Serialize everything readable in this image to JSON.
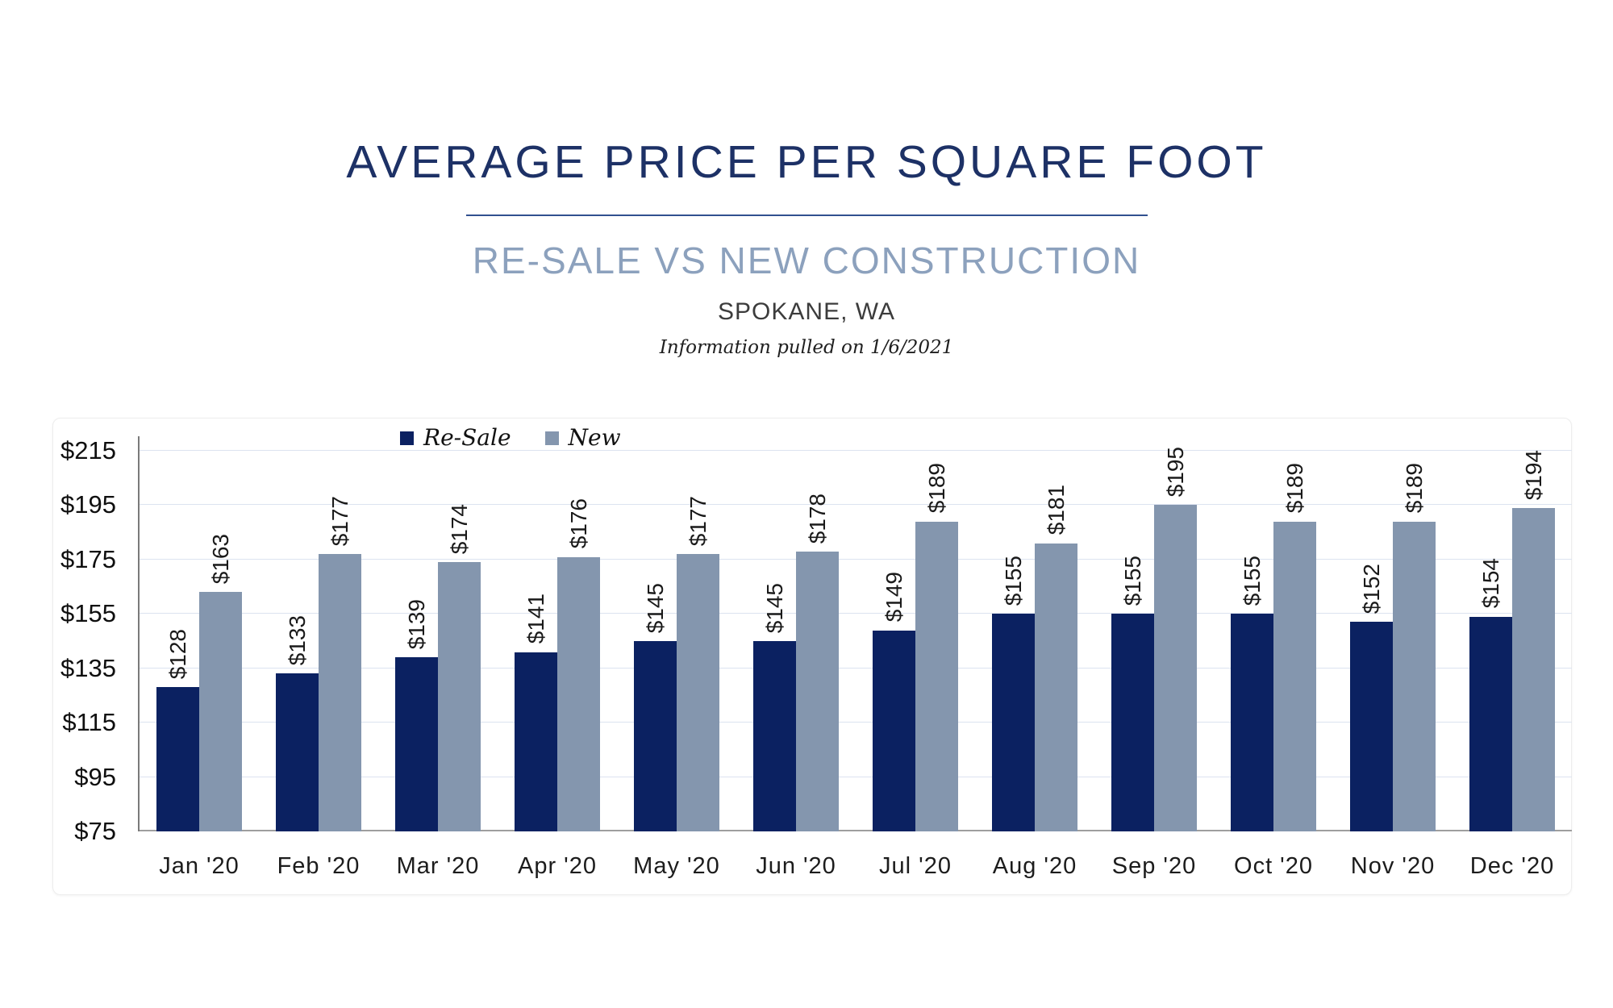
{
  "chart_data": {
    "type": "bar",
    "title": "AVERAGE PRICE PER SQUARE FOOT",
    "subtitle": "RE-SALE VS NEW CONSTRUCTION",
    "location": "SPOKANE, WA",
    "note": "Information pulled on 1/6/2021",
    "categories": [
      "Jan '20",
      "Feb '20",
      "Mar '20",
      "Apr '20",
      "May '20",
      "Jun '20",
      "Jul '20",
      "Aug '20",
      "Sep '20",
      "Oct '20",
      "Nov '20",
      "Dec '20"
    ],
    "series": [
      {
        "name": "Re-Sale",
        "color": "#0b2161",
        "values": [
          128,
          133,
          139,
          141,
          145,
          145,
          149,
          155,
          155,
          155,
          152,
          154
        ]
      },
      {
        "name": "New",
        "color": "#8496ae",
        "values": [
          163,
          177,
          174,
          176,
          177,
          178,
          189,
          181,
          195,
          189,
          189,
          194
        ]
      }
    ],
    "value_prefix": "$",
    "value_labels_rotation": "vertical",
    "ylim": [
      75,
      215
    ],
    "y_tick_values": [
      215,
      195,
      175,
      155,
      135,
      115,
      95,
      75
    ],
    "y_tick_labels": [
      "$215",
      "$195",
      "$175",
      "$155",
      "$135",
      "$115",
      "$95",
      "$75"
    ],
    "grid": true,
    "legend_position": "top"
  },
  "colors": {
    "title": "#1d3166",
    "subtitle": "#8ca1bd",
    "divider": "#31508f",
    "gridline": "#dce3f0",
    "baseline": "#9e9e9e"
  }
}
